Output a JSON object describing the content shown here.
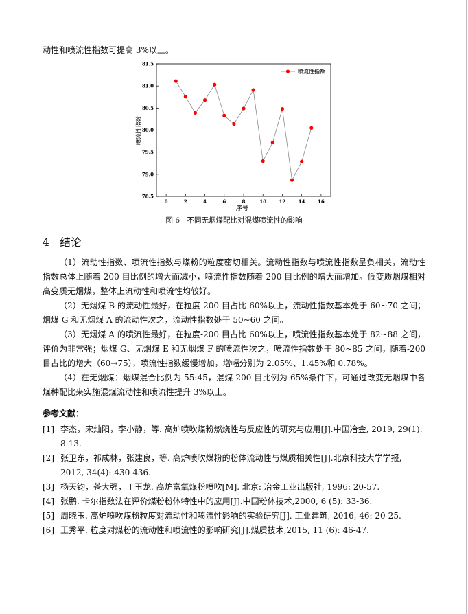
{
  "intro_line": "动性和喷流性指数可提高 3%以上。",
  "chart_data": {
    "type": "line",
    "title": "",
    "xlabel": "序号",
    "ylabel": "喷流性指数",
    "xlim": [
      -1,
      17
    ],
    "ylim": [
      78.5,
      81.5
    ],
    "xticks": [
      0,
      2,
      4,
      6,
      8,
      10,
      12,
      14,
      16
    ],
    "yticks": [
      "78.5",
      "79.0",
      "79.5",
      "80.0",
      "80.5",
      "81.0",
      "81.5"
    ],
    "grid": false,
    "legend_position": "top-right",
    "series": [
      {
        "name": "喷流性指数",
        "color": "#ff0000",
        "line_color": "#888888",
        "x": [
          1,
          2,
          3,
          4,
          5,
          6,
          7,
          8,
          9,
          10,
          11,
          12,
          13,
          14,
          15
        ],
        "y": [
          81.11,
          80.76,
          80.39,
          80.68,
          81.03,
          80.33,
          80.14,
          80.49,
          80.91,
          79.3,
          79.72,
          80.48,
          78.87,
          79.29,
          80.05
        ]
      }
    ]
  },
  "figure_caption": "图 6　不同无烟煤配比对混煤喷流性的影响",
  "section": {
    "heading": "4　结论",
    "paragraphs": [
      "（1）流动性指数、喷流性指数与煤粉的粒度密切相关。流动性指数与喷流性指数呈负相关，流动性指数总体上随着-200 目比例的增大而减小，喷流性指数随着-200 目比例的增大而增加。低变质烟煤相对高变质无烟煤，整体上流动性和喷流性均较好。",
      "（2）无烟煤 B 的流动性最好，在粒度-200 目占比 60%以上，流动性指数基本处于 60~70 之间；烟煤 G 和无烟煤 A 的流动性次之，流动性指数处于 50~60 之间。",
      "（3）无烟煤 A 的喷流性最好，在粒度-200 目占比 60%以上，喷流性指数基本处于 82~88 之间，评价为非常强；烟煤 G、无烟煤 E 和无烟煤 F 的喷流性次之，喷流性指数处于 80~85 之间，随着-200 目占比的增大（60→75），喷流性指数缓慢增加，增幅分别为 2.05%、1.45%和 0.78%。",
      "（4）在无烟煤：烟煤混合比例为 55:45，混煤-200 目比例为 65%条件下，可通过改变无烟煤中各煤种配比来实施混煤流动性和喷流性提升 3%以上。"
    ]
  },
  "references": {
    "heading": "参考文献：",
    "items": [
      {
        "num": "[1]",
        "text": "李杰，宋灿阳，李小静，等. 高炉喷吹煤粉燃烧性与反应性的研究与应用[J].中国冶金, 2019, 29(1): 8-13."
      },
      {
        "num": "[2]",
        "text": "张卫东，祁成林，张建良，等. 高炉喷吹煤粉的粉体流动性与煤质相关性[J].北京科技大学学报, 2012, 34(4): 430-436."
      },
      {
        "num": "[3]",
        "text": "杨天钧，苍大强，丁玉龙. 高炉富氧煤粉喷吹[M]. 北京: 冶金工业出版社, 1996: 20-57."
      },
      {
        "num": "[4]",
        "text": "张鹏. 卡尔指数法在评价煤粉粉体特性中的应用[J].中国粉体技术,2000, 6 (5): 33-36."
      },
      {
        "num": "[5]",
        "text": "周晓玉. 高炉喷吹煤粉粒度对流动性和喷流性影响的实验研究[J]. 工业建筑, 2016, 46: 20-25."
      },
      {
        "num": "[6]",
        "text": "王秀平. 粒度对煤粉的流动性和喷流性的影响研究[J].煤质技术,2015, 11 (6): 46-47."
      }
    ]
  }
}
